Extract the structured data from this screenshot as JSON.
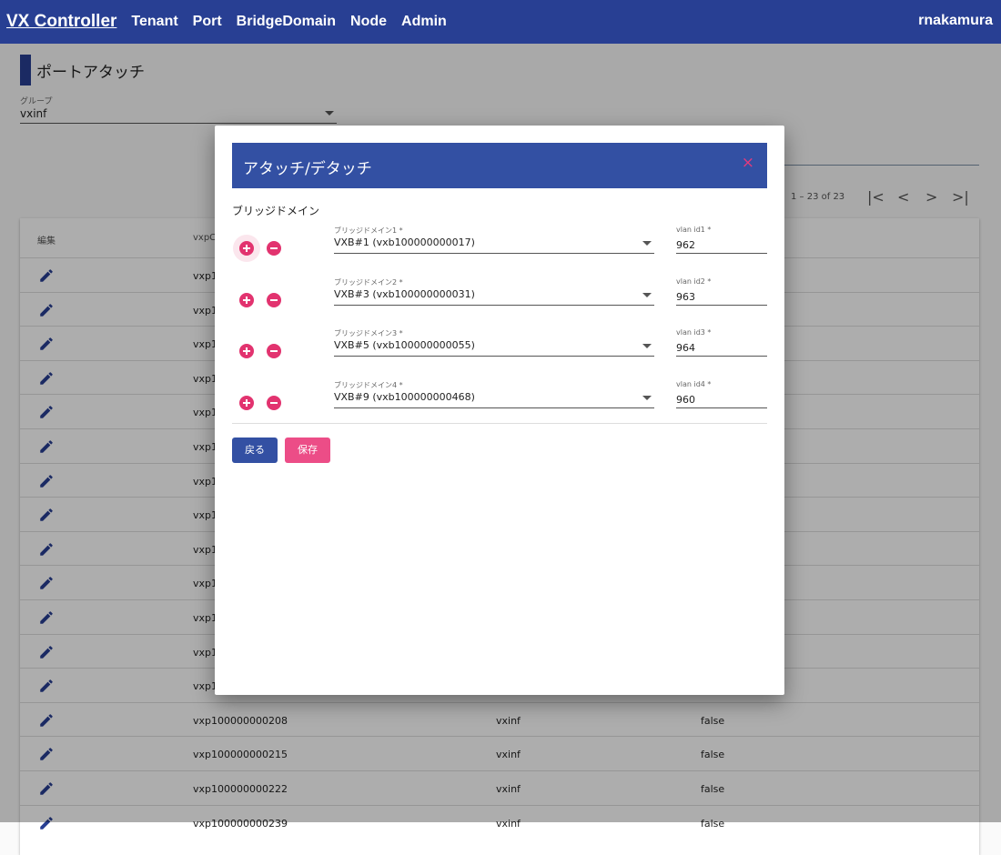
{
  "nav": {
    "brand": "VX Controller",
    "links": [
      "Tenant",
      "Port",
      "BridgeDomain",
      "Node",
      "Admin"
    ],
    "user": "rnakamura"
  },
  "page": {
    "title": "ポートアタッチ",
    "group_label": "グループ",
    "group_value": "vxinf"
  },
  "paginator": {
    "range": "1 – 23 of 23",
    "first": "|<",
    "prev": "<",
    "next": ">",
    "last": ">|"
  },
  "table": {
    "headers": [
      "編集",
      "vxpC"
    ],
    "rows": [
      {
        "id": "vxp1",
        "group": "",
        "flag": ""
      },
      {
        "id": "vxp1",
        "group": "",
        "flag": ""
      },
      {
        "id": "vxp1",
        "group": "",
        "flag": ""
      },
      {
        "id": "vxp1",
        "group": "",
        "flag": ""
      },
      {
        "id": "vxp1",
        "group": "",
        "flag": ""
      },
      {
        "id": "vxp1",
        "group": "",
        "flag": ""
      },
      {
        "id": "vxp1",
        "group": "",
        "flag": ""
      },
      {
        "id": "vxp1",
        "group": "",
        "flag": ""
      },
      {
        "id": "vxp1",
        "group": "",
        "flag": ""
      },
      {
        "id": "vxp1",
        "group": "",
        "flag": ""
      },
      {
        "id": "vxp1",
        "group": "",
        "flag": ""
      },
      {
        "id": "vxp1",
        "group": "",
        "flag": ""
      },
      {
        "id": "vxp1",
        "group": "",
        "flag": ""
      },
      {
        "id": "vxp100000000208",
        "group": "vxinf",
        "flag": "false"
      },
      {
        "id": "vxp100000000215",
        "group": "vxinf",
        "flag": "false"
      },
      {
        "id": "vxp100000000222",
        "group": "vxinf",
        "flag": "false"
      },
      {
        "id": "vxp100000000239",
        "group": "vxinf",
        "flag": "false"
      }
    ]
  },
  "dialog": {
    "title": "アタッチ/デタッチ",
    "close": "×",
    "section": "ブリッジドメイン",
    "rows": [
      {
        "bd_label": "ブリッジドメイン1 *",
        "bd_value": "VXB#1 (vxb100000000017)",
        "vlan_label": "vlan id1 *",
        "vlan_value": "962"
      },
      {
        "bd_label": "ブリッジドメイン2 *",
        "bd_value": "VXB#3 (vxb100000000031)",
        "vlan_label": "vlan id2 *",
        "vlan_value": "963"
      },
      {
        "bd_label": "ブリッジドメイン3 *",
        "bd_value": "VXB#5 (vxb100000000055)",
        "vlan_label": "vlan id3 *",
        "vlan_value": "964"
      },
      {
        "bd_label": "ブリッジドメイン4 *",
        "bd_value": "VXB#9 (vxb100000000468)",
        "vlan_label": "vlan id4 *",
        "vlan_value": "960"
      }
    ],
    "back": "戻る",
    "save": "保存"
  },
  "colors": {
    "primary": "#283f93",
    "accent": "#e2336f"
  }
}
